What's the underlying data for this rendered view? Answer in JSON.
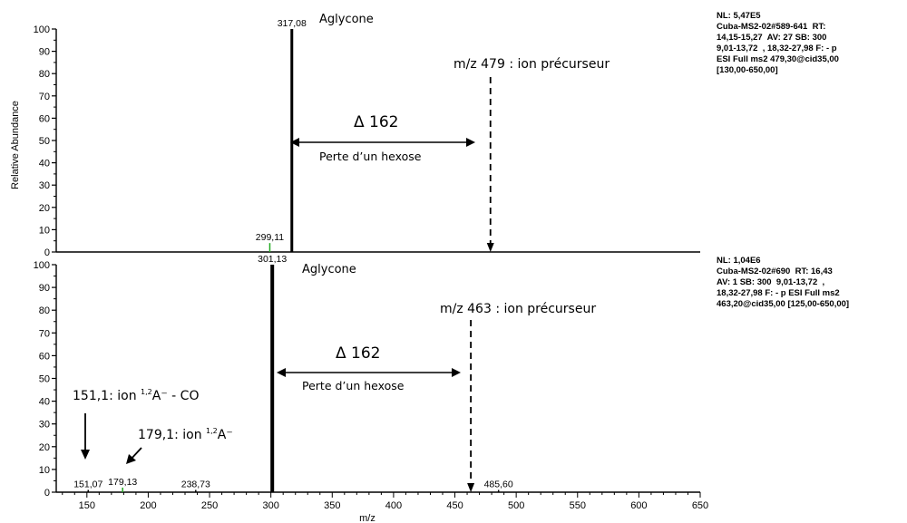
{
  "chart_data": [
    {
      "type": "spectrum",
      "ylabel": "Relative Abundance",
      "xlabel": "",
      "xlim": [
        125,
        650
      ],
      "ylim": [
        0,
        100
      ],
      "yticks": [
        "0",
        "10",
        "20",
        "30",
        "40",
        "50",
        "60",
        "70",
        "80",
        "90",
        "100"
      ],
      "peaks": [
        {
          "mz": 299.11,
          "intensity": 4,
          "label": "299,11",
          "color": "#22aa22"
        },
        {
          "mz": 317.08,
          "intensity": 100,
          "label": "317,08",
          "color": "#000000"
        }
      ],
      "annotations": {
        "aglycone": "Aglycone",
        "precursor": "m/z 479 : ion précurseur",
        "precursor_mz": 479,
        "delta": "Δ 162",
        "loss": "Perte d’un hexose"
      },
      "info": [
        "NL: 5,47E5",
        "Cuba-MS2-02#589-641  RT:",
        "14,15-15,27  AV: 27 SB: 300",
        "9,01-13,72  , 18,32-27,98 F: - p",
        "ESI Full ms2 479,30@cid35,00",
        "[130,00-650,00]"
      ]
    },
    {
      "type": "spectrum",
      "ylabel": "",
      "xlabel": "m/z",
      "xlim": [
        125,
        650
      ],
      "ylim": [
        0,
        100
      ],
      "yticks": [
        "0",
        "10",
        "20",
        "30",
        "40",
        "50",
        "60",
        "70",
        "80",
        "90",
        "100"
      ],
      "xticks": [
        "150",
        "200",
        "250",
        "300",
        "350",
        "400",
        "450",
        "500",
        "550",
        "600",
        "650"
      ],
      "peaks": [
        {
          "mz": 151.07,
          "intensity": 1,
          "label": "151,07",
          "color": "#000000"
        },
        {
          "mz": 179.13,
          "intensity": 2,
          "label": "179,13",
          "color": "#22aa22"
        },
        {
          "mz": 238.73,
          "intensity": 1,
          "label": "238,73",
          "color": "#000000"
        },
        {
          "mz": 301.13,
          "intensity": 100,
          "label": "301,13",
          "color": "#000000"
        },
        {
          "mz": 485.6,
          "intensity": 1,
          "label": "485,60",
          "color": "#000000"
        }
      ],
      "annotations": {
        "aglycone": "Aglycone",
        "precursor": "m/z 463 : ion précurseur",
        "precursor_mz": 463,
        "delta": "Δ 162",
        "loss": "Perte d’un hexose",
        "frag151_main": "151,1: ion ",
        "frag151_sup": "1,2",
        "frag151_tail": "A⁻ - CO",
        "frag179_main": "179,1: ion ",
        "frag179_sup": "1,2",
        "frag179_tail": "A⁻"
      },
      "info": [
        "NL: 1,04E6",
        "Cuba-MS2-02#690  RT: 16,43",
        "AV: 1 SB: 300  9,01-13,72  ,",
        "18,32-27,98 F: - p ESI Full ms2",
        "463,20@cid35,00 [125,00-650,00]"
      ]
    }
  ]
}
